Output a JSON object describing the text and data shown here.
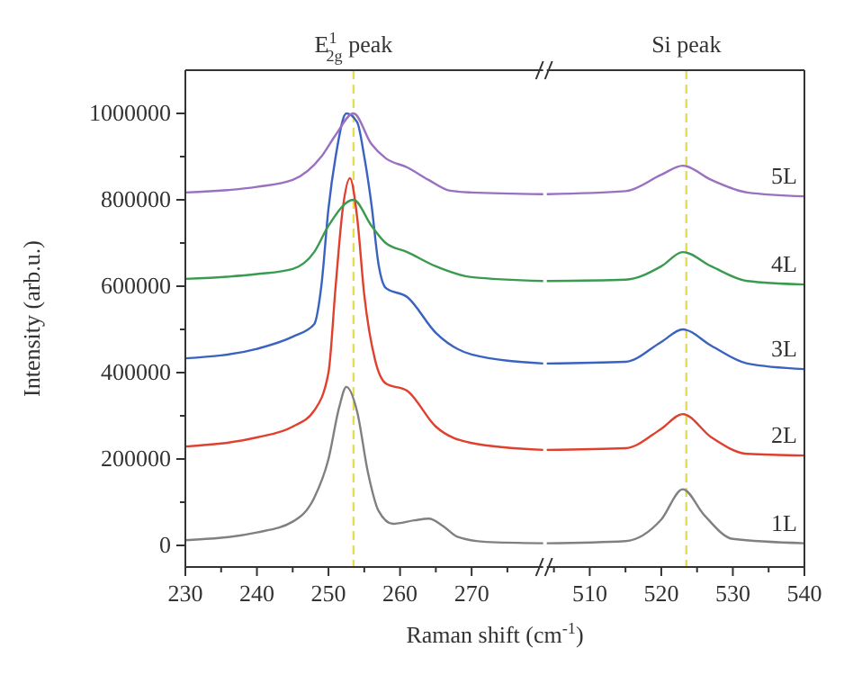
{
  "chart_data": [
    {
      "type": "line",
      "ylabel": "Intensity (arb.u.)",
      "xlabel": "Raman shift (cm$^{-1}$)",
      "xlim": [
        230,
        280
      ],
      "ylim": [
        -50000,
        1100000
      ],
      "xticks": [
        230,
        {
          "value": 235,
          "label": null
        },
        240,
        {
          "value": 245,
          "label": null
        },
        250,
        {
          "value": 255,
          "label": null
        },
        260,
        {
          "value": 265,
          "label": null
        },
        270,
        {
          "value": 275,
          "label": null
        }
      ],
      "yticks": [
        0,
        {
          "value": 100000,
          "label": null
        },
        200000,
        {
          "value": 300000,
          "label": null
        },
        400000,
        {
          "value": 500000,
          "label": null
        },
        600000,
        {
          "value": 700000,
          "label": null
        },
        800000,
        {
          "value": 900000,
          "label": null
        },
        1000000
      ],
      "ref_lines": [
        {
          "axis": "x",
          "value": 253.5,
          "label": "E$^{1}$$_{2g}$ peak",
          "color": "#e6dc50",
          "line_style": "dashed"
        }
      ],
      "series": [
        {
          "color": "#808080",
          "x": [
            230,
            240,
            245,
            248,
            250,
            251.5,
            252.5,
            254,
            255.5,
            257,
            259,
            262,
            264,
            266,
            268,
            272,
            280
          ],
          "values": [
            12000,
            30000,
            55000,
            110000,
            200000,
            320000,
            367000,
            310000,
            170000,
            80000,
            50000,
            58000,
            62000,
            45000,
            20000,
            8000,
            5000
          ]
        },
        {
          "color": "#e0402e",
          "x": [
            230,
            240,
            245,
            248,
            250,
            251,
            252,
            253,
            254,
            255,
            256.5,
            258,
            261,
            265,
            270,
            280
          ],
          "values": [
            229000,
            250000,
            275000,
            312000,
            400000,
            600000,
            780000,
            850000,
            760000,
            580000,
            430000,
            375000,
            358000,
            275000,
            237000,
            221000
          ]
        },
        {
          "color": "#3a62c0",
          "x": [
            230,
            240,
            245,
            248,
            249,
            250,
            251,
            252.5,
            254,
            255,
            256,
            257,
            258,
            261,
            265,
            270,
            280
          ],
          "values": [
            433000,
            455000,
            483000,
            512000,
            600000,
            780000,
            900000,
            1000000,
            980000,
            900000,
            790000,
            650000,
            596000,
            575000,
            492000,
            442000,
            421000
          ]
        },
        {
          "color": "#3a9a50",
          "x": [
            230,
            240,
            245,
            248,
            250,
            253.5,
            256,
            258,
            261,
            265,
            270,
            280
          ],
          "values": [
            617000,
            628000,
            640000,
            679000,
            740000,
            800000,
            740000,
            700000,
            679000,
            646000,
            621000,
            612000
          ]
        },
        {
          "color": "#9a70c0",
          "x": [
            230,
            240,
            245,
            249,
            251,
            253.5,
            256,
            258,
            261,
            264,
            267,
            270,
            280
          ],
          "values": [
            817000,
            830000,
            846000,
            900000,
            950000,
            1000000,
            929000,
            896000,
            875000,
            846000,
            821000,
            817000,
            813000
          ]
        }
      ]
    },
    {
      "type": "line",
      "tick_labels": "x",
      "xlim": [
        504,
        540
      ],
      "ylim": [
        -50000,
        1100000
      ],
      "xticks": [
        {
          "value": 505,
          "label": null
        },
        510,
        {
          "value": 515,
          "label": null
        },
        520,
        {
          "value": 525,
          "label": null
        },
        530,
        {
          "value": 535,
          "label": null
        },
        540
      ],
      "ref_lines": [
        {
          "axis": "x",
          "value": 523.5,
          "label": "Si peak",
          "color": "#e6dc50",
          "line_style": "dashed"
        }
      ],
      "series": [
        {
          "name": "1L",
          "color": "#808080",
          "x": [
            504,
            515,
            520,
            523,
            526,
            530,
            540
          ],
          "values": [
            5000,
            10000,
            60000,
            130000,
            70000,
            15000,
            5000
          ]
        },
        {
          "name": "2L",
          "color": "#e0402e",
          "x": [
            504,
            515,
            520,
            523,
            527,
            532,
            540
          ],
          "values": [
            221000,
            225000,
            270000,
            304000,
            250000,
            212000,
            208000
          ]
        },
        {
          "name": "3L",
          "color": "#3a62c0",
          "x": [
            504,
            515,
            520,
            523,
            527,
            532,
            540
          ],
          "values": [
            421000,
            425000,
            471000,
            500000,
            462000,
            421000,
            408000
          ]
        },
        {
          "name": "4L",
          "color": "#3a9a50",
          "x": [
            504,
            515,
            520,
            523,
            527,
            532,
            540
          ],
          "values": [
            612000,
            615000,
            646000,
            679000,
            646000,
            612000,
            604000
          ]
        },
        {
          "name": "5L",
          "color": "#9a70c0",
          "x": [
            504,
            515,
            520,
            523,
            527,
            532,
            540
          ],
          "values": [
            813000,
            820000,
            858000,
            879000,
            846000,
            817000,
            808000
          ]
        }
      ]
    }
  ]
}
